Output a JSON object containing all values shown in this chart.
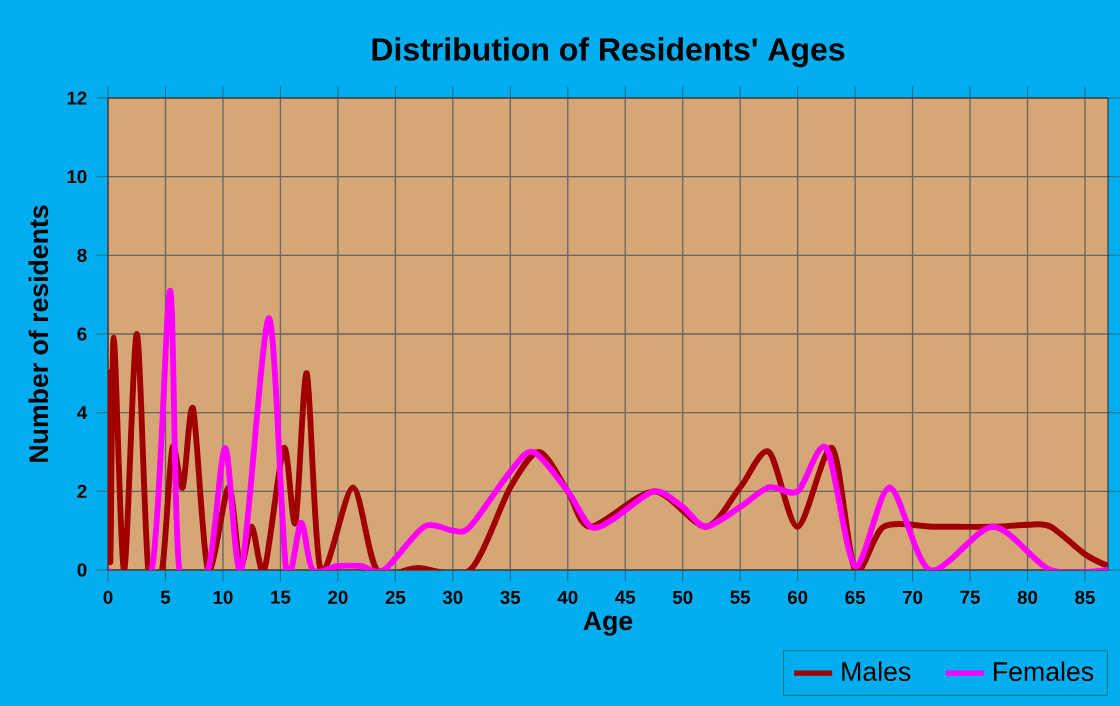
{
  "chart_data": {
    "type": "line",
    "title": "Distribution of Residents' Ages",
    "xlabel": "Age",
    "ylabel": "Number of residents",
    "xlim": [
      0,
      87
    ],
    "ylim": [
      0,
      12
    ],
    "xticks": [
      0,
      5,
      10,
      15,
      20,
      25,
      30,
      35,
      40,
      45,
      50,
      55,
      60,
      65,
      70,
      75,
      80,
      85
    ],
    "yticks": [
      0,
      2,
      4,
      6,
      8,
      10,
      12
    ],
    "grid": true,
    "legend": "bottom",
    "marker": "none",
    "line_style": "solid",
    "series": [
      {
        "name": "Males",
        "color": "#a00000",
        "x": [
          0,
          0.2,
          0.5,
          1.4,
          2.5,
          3.5,
          4.7,
          5.6,
          6.5,
          7.4,
          8.7,
          10.5,
          11.5,
          12.5,
          13.6,
          15.3,
          16.3,
          17.3,
          18.5,
          21.3,
          23.4,
          27,
          31.5,
          35,
          37.5,
          40,
          42,
          47.5,
          52,
          55,
          57.5,
          60,
          63,
          65,
          67.5,
          72,
          77,
          80,
          82,
          85,
          87
        ],
        "values": [
          5.1,
          0.2,
          5.9,
          0,
          6,
          0,
          0,
          3.1,
          2.1,
          4.1,
          0,
          2.1,
          0.1,
          1.1,
          0,
          3.1,
          1.2,
          5,
          0,
          2.1,
          0,
          0.05,
          0,
          2.1,
          3,
          2,
          1.1,
          2,
          1.1,
          2.1,
          3,
          1.1,
          3.1,
          0,
          1.1,
          1.1,
          1.1,
          1.15,
          1.1,
          0.4,
          0.1
        ]
      },
      {
        "name": "Females",
        "color": "#ff00ff",
        "x": [
          0,
          3.8,
          5.4,
          6.2,
          8.7,
          10.2,
          11.6,
          14,
          15.5,
          16.8,
          17.8,
          20,
          22,
          24,
          27.5,
          30,
          31.5,
          35,
          37,
          40,
          42,
          44,
          47.5,
          50,
          52,
          55,
          57.5,
          60,
          62.5,
          65,
          68,
          71.5,
          77,
          82,
          87
        ],
        "values": [
          0,
          0,
          7.1,
          0,
          0,
          3.1,
          0,
          6.4,
          0,
          1.2,
          0,
          0.1,
          0.1,
          0,
          1.1,
          1,
          1.1,
          2.5,
          3,
          2,
          1.1,
          1.3,
          2,
          1.6,
          1.1,
          1.6,
          2.1,
          2,
          3.1,
          0.1,
          2.1,
          0,
          1.1,
          0,
          0
        ]
      }
    ]
  }
}
